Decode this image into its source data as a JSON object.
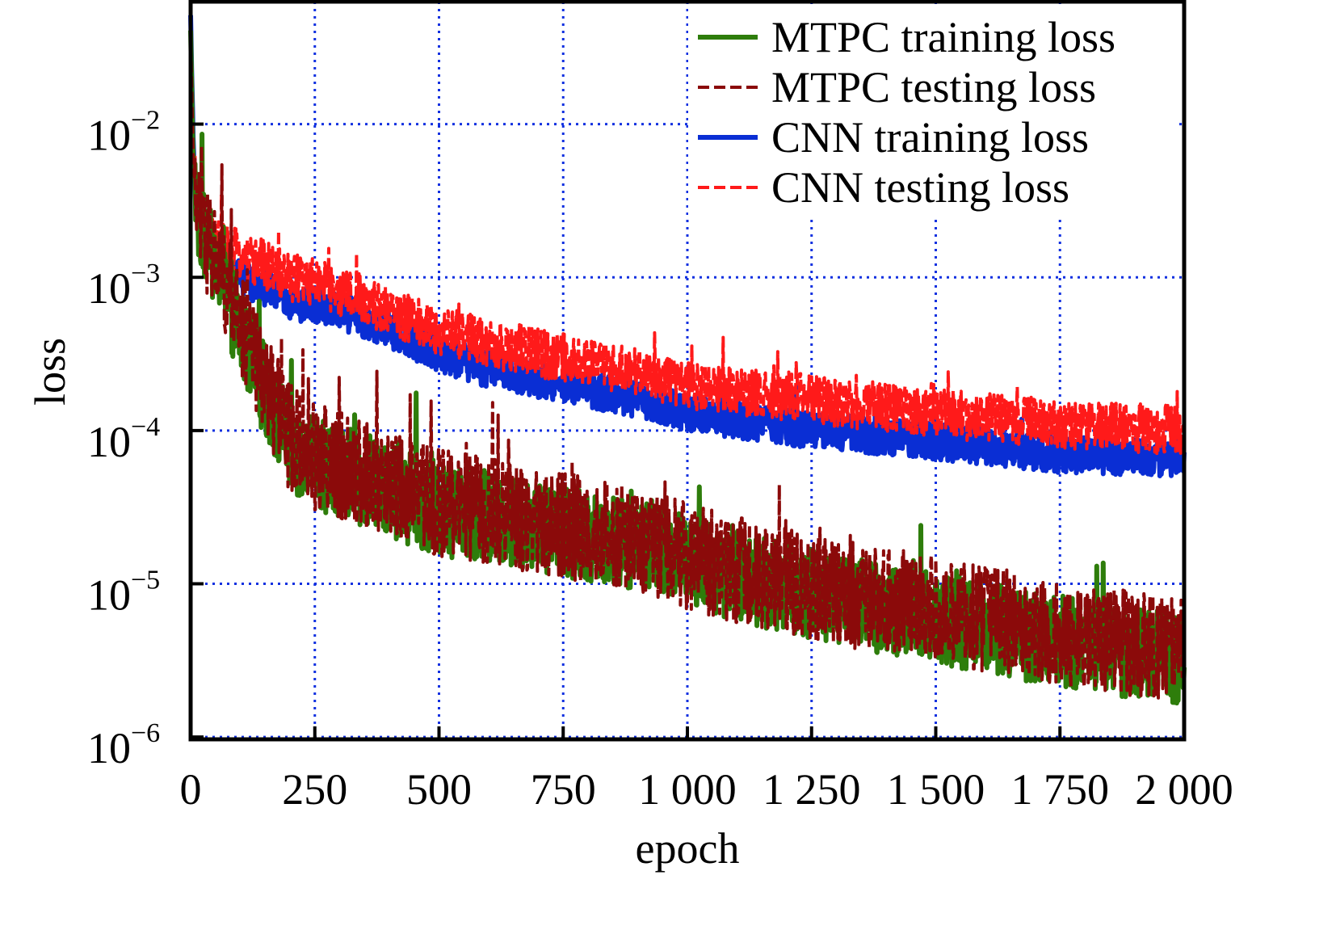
{
  "chart_data": {
    "type": "line",
    "title": "",
    "xlabel": "epoch",
    "ylabel": "loss",
    "yscale": "log",
    "xlim": [
      0,
      2000
    ],
    "ylim": [
      1e-06,
      0.063
    ],
    "grid": true,
    "legend_position": "top-right",
    "x_ticks": [
      0,
      250,
      500,
      750,
      1000,
      1250,
      1500,
      1750,
      2000
    ],
    "x_tick_labels": [
      "0",
      "250",
      "500",
      "750",
      "1 000",
      "1 250",
      "1 500",
      "1 750",
      "2 000"
    ],
    "y_ticks": [
      0.01,
      0.001,
      0.0001,
      1e-05,
      1e-06
    ],
    "y_tick_labels": [
      {
        "base": "10",
        "exp": "−2"
      },
      {
        "base": "10",
        "exp": "−3"
      },
      {
        "base": "10",
        "exp": "−4"
      },
      {
        "base": "10",
        "exp": "−5"
      },
      {
        "base": "10",
        "exp": "−6"
      }
    ],
    "x": [
      0,
      5,
      10,
      25,
      50,
      100,
      150,
      200,
      250,
      300,
      400,
      500,
      600,
      750,
      900,
      1000,
      1250,
      1500,
      1750,
      2000
    ],
    "series": [
      {
        "name": "MTPC training loss",
        "color": "#2e7d0b",
        "style": "solid",
        "values": [
          0.04,
          0.006,
          0.003,
          0.0018,
          0.0012,
          0.00045,
          0.00018,
          8e-05,
          6e-05,
          5.5e-05,
          4e-05,
          3e-05,
          2.8e-05,
          2.2e-05,
          1.8e-05,
          1.4e-05,
          8.5e-06,
          6e-06,
          4.2e-06,
          3.2e-06
        ],
        "noise_decades": 0.3
      },
      {
        "name": "MTPC testing loss",
        "color": "#8b0a0a",
        "style": "dashed",
        "values": [
          0.04,
          0.006,
          0.0032,
          0.0019,
          0.0013,
          0.0005,
          0.0002,
          9e-05,
          6.8e-05,
          6e-05,
          4.5e-05,
          3.4e-05,
          3e-05,
          2.4e-05,
          2e-05,
          1.5e-05,
          9.5e-06,
          6.8e-06,
          4.8e-06,
          3.5e-06
        ],
        "noise_decades": 0.35
      },
      {
        "name": "CNN training loss",
        "color": "#0a2ed4",
        "style": "solid",
        "values": [
          0.05,
          0.008,
          0.003,
          0.0018,
          0.0013,
          0.001,
          0.00085,
          0.0007,
          0.00065,
          0.0006,
          0.00045,
          0.00032,
          0.00025,
          0.0002,
          0.00016,
          0.00013,
          0.0001,
          8.5e-05,
          7e-05,
          6.5e-05
        ],
        "noise_decades": 0.12
      },
      {
        "name": "CNN testing loss",
        "color": "#ff1a1a",
        "style": "dashed",
        "values": [
          0.05,
          0.008,
          0.0035,
          0.0022,
          0.0017,
          0.0014,
          0.0012,
          0.001,
          0.00095,
          0.0008,
          0.0006,
          0.00045,
          0.00037,
          0.0003,
          0.00024,
          0.0002,
          0.00016,
          0.00013,
          0.00011,
          0.0001
        ],
        "noise_decades": 0.16
      }
    ]
  }
}
